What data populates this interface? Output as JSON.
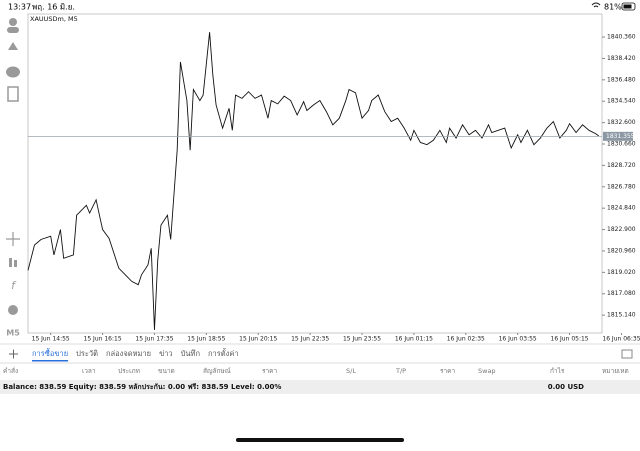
{
  "status_bar": {
    "time": "13:37",
    "date": "พฤ. 16 มิ.ย.",
    "battery": "81%"
  },
  "toolbar": {
    "timeframe": "M5"
  },
  "chart_data": {
    "type": "line",
    "title": "XAUUSDm, M5",
    "color": "#111111",
    "x": [
      0,
      2,
      4,
      7,
      8,
      10,
      11,
      14,
      15,
      18,
      19,
      21,
      23,
      25,
      28,
      30,
      32,
      34,
      35,
      37,
      38,
      39,
      40,
      41,
      43,
      44,
      46,
      47,
      49,
      50,
      51,
      53,
      54,
      56,
      57,
      58,
      60,
      62,
      63,
      64,
      66,
      68,
      70,
      72,
      74,
      75,
      77,
      79,
      81,
      83,
      85,
      86,
      88,
      90,
      92,
      94,
      96,
      98,
      99,
      101,
      103,
      105,
      106,
      108,
      110,
      112,
      114,
      116,
      118,
      119,
      121,
      123,
      125,
      127,
      129,
      130,
      132,
      134,
      136,
      138,
      140,
      142,
      143,
      145,
      147,
      149,
      151,
      152,
      154,
      156,
      158,
      160,
      162,
      164,
      166,
      167,
      169,
      171,
      173,
      175,
      176
    ],
    "values": [
      1819.2,
      1821.5,
      1822.0,
      1822.3,
      1820.6,
      1822.9,
      1820.3,
      1820.6,
      1824.2,
      1825.1,
      1824.4,
      1825.6,
      1822.9,
      1822.1,
      1819.4,
      1818.8,
      1818.2,
      1817.9,
      1818.8,
      1819.7,
      1821.2,
      1813.8,
      1820.1,
      1823.3,
      1824.2,
      1822.0,
      1830.1,
      1838.1,
      1834.6,
      1830.1,
      1835.6,
      1834.6,
      1835.1,
      1840.8,
      1836.9,
      1834.2,
      1832.1,
      1833.9,
      1831.9,
      1835.1,
      1834.8,
      1835.4,
      1834.8,
      1835.1,
      1833.0,
      1834.6,
      1834.3,
      1835.0,
      1834.6,
      1833.3,
      1834.5,
      1833.7,
      1834.2,
      1834.6,
      1833.6,
      1832.4,
      1833.0,
      1834.6,
      1835.6,
      1835.3,
      1833.0,
      1833.7,
      1834.6,
      1835.1,
      1833.6,
      1832.7,
      1833.0,
      1832.1,
      1831.0,
      1831.9,
      1830.8,
      1830.6,
      1831.0,
      1831.9,
      1830.8,
      1832.1,
      1831.2,
      1832.4,
      1831.5,
      1831.9,
      1831.2,
      1832.4,
      1831.7,
      1831.9,
      1832.1,
      1830.3,
      1831.5,
      1830.8,
      1831.9,
      1830.6,
      1831.2,
      1832.1,
      1832.7,
      1831.2,
      1831.9,
      1832.5,
      1831.7,
      1832.4,
      1831.9,
      1831.6,
      1831.4
    ],
    "xlim": [
      0,
      177
    ],
    "ylim": [
      1813.52,
      1842.45
    ],
    "xticks": [
      {
        "value": 7,
        "label": "15 Jun 14:55"
      },
      {
        "value": 23,
        "label": "15 Jun 16:15"
      },
      {
        "value": 39,
        "label": "15 Jun 17:35"
      },
      {
        "value": 55,
        "label": "15 Jun 18:55"
      },
      {
        "value": 71,
        "label": "15 Jun 20:15"
      },
      {
        "value": 87,
        "label": "15 Jun 22:35"
      },
      {
        "value": 103,
        "label": "15 Jun 23:55"
      },
      {
        "value": 119,
        "label": "16 Jun 01:15"
      },
      {
        "value": 135,
        "label": "16 Jun 02:35"
      },
      {
        "value": 151,
        "label": "16 Jun 03:55"
      },
      {
        "value": 167,
        "label": "16 Jun 05:15"
      },
      {
        "value": 183,
        "label": "16 Jun 06:35"
      }
    ],
    "yticks": [
      {
        "value": 1840.36,
        "label": "1840.360"
      },
      {
        "value": 1838.42,
        "label": "1838.420"
      },
      {
        "value": 1836.48,
        "label": "1836.480"
      },
      {
        "value": 1834.54,
        "label": "1834.540"
      },
      {
        "value": 1832.6,
        "label": "1832.600"
      },
      {
        "value": 1830.66,
        "label": "1830.660"
      },
      {
        "value": 1828.72,
        "label": "1828.720"
      },
      {
        "value": 1826.78,
        "label": "1826.780"
      },
      {
        "value": 1824.84,
        "label": "1824.840"
      },
      {
        "value": 1822.9,
        "label": "1822.900"
      },
      {
        "value": 1820.96,
        "label": "1820.960"
      },
      {
        "value": 1819.02,
        "label": "1819.020"
      },
      {
        "value": 1817.08,
        "label": "1817.080"
      },
      {
        "value": 1815.14,
        "label": "1815.140"
      }
    ],
    "current_price": 1831.355,
    "grid": false
  },
  "tabs": [
    "การซื้อขาย",
    "ประวัติ",
    "กล่องจดหมาย",
    "ข่าว",
    "บันทึก",
    "การตั้งค่า"
  ],
  "columns": [
    "คำสั่ง",
    "เวลา",
    "ประเภท",
    "ขนาด",
    "สัญลักษณ์",
    "ราคา",
    "S/L",
    "T/P",
    "ราคา",
    "Swap",
    "กำไร",
    "หมายเหต"
  ],
  "account": {
    "summary": "Balance: 838.59 Equity: 838.59 หลักประกัน: 0.00 ฟรี: 838.59 Level: 0.00%",
    "profit": "0.00  USD"
  }
}
